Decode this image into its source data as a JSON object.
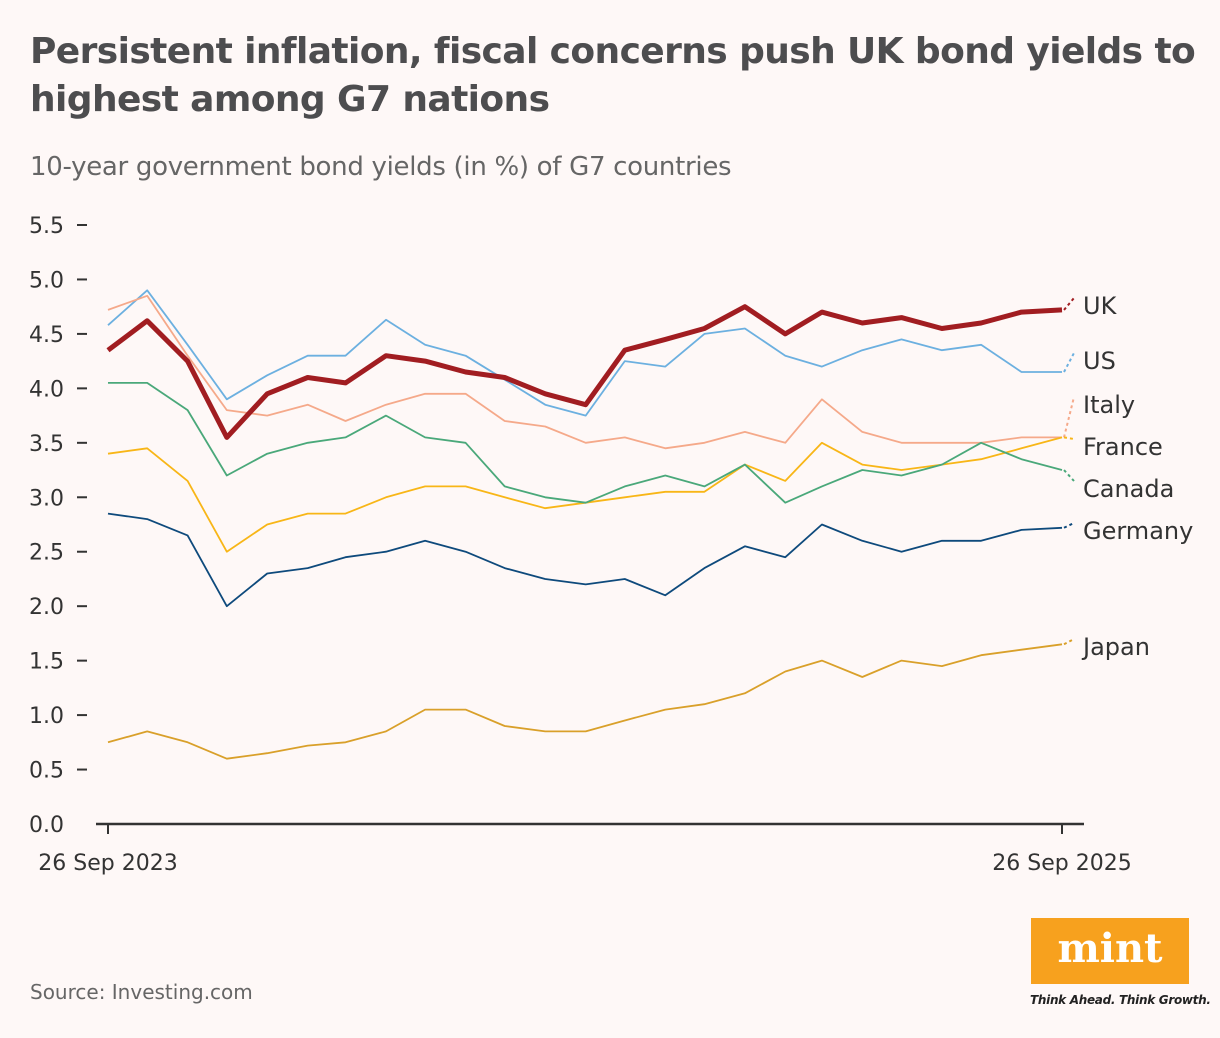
{
  "chart_data": {
    "type": "line",
    "title": "Persistent inflation, fiscal concerns push UK bond yields to highest among G7 nations",
    "subtitle": "10-year government bond yields (in %) of G7 countries",
    "xlabel": "",
    "ylabel": "",
    "ylim": [
      0,
      5.5
    ],
    "yticks": [
      "0.0",
      "0.5",
      "1.0",
      "1.5",
      "2.0",
      "2.5",
      "3.0",
      "3.5",
      "4.0",
      "4.5",
      "5.0",
      "5.5"
    ],
    "xtick_labels": [
      "26 Sep 2023",
      "26 Sep 2025"
    ],
    "grid": false,
    "legend": "direct labels at line ends (right)",
    "x": [
      "2023-09-26",
      "2023-10-26",
      "2023-11-26",
      "2023-12-26",
      "2024-01-26",
      "2024-02-26",
      "2024-03-26",
      "2024-04-26",
      "2024-05-26",
      "2024-06-26",
      "2024-07-26",
      "2024-08-26",
      "2024-09-26",
      "2024-10-26",
      "2024-11-26",
      "2024-12-26",
      "2025-01-26",
      "2025-02-26",
      "2025-03-26",
      "2025-04-26",
      "2025-05-26",
      "2025-06-26",
      "2025-07-26",
      "2025-08-26",
      "2025-09-26"
    ],
    "series": [
      {
        "name": "UK",
        "color": "#a11d21",
        "values": [
          4.35,
          4.62,
          4.25,
          3.55,
          3.95,
          4.1,
          4.05,
          4.3,
          4.25,
          4.15,
          4.1,
          3.95,
          3.85,
          4.35,
          4.45,
          4.55,
          4.75,
          4.5,
          4.7,
          4.6,
          4.65,
          4.55,
          4.6,
          4.7,
          4.72
        ]
      },
      {
        "name": "US",
        "color": "#6cb0e0",
        "values": [
          4.58,
          4.9,
          4.4,
          3.9,
          4.12,
          4.3,
          4.3,
          4.63,
          4.4,
          4.3,
          4.08,
          3.85,
          3.75,
          4.25,
          4.2,
          4.5,
          4.55,
          4.3,
          4.2,
          4.35,
          4.45,
          4.35,
          4.4,
          4.15,
          4.15
        ]
      },
      {
        "name": "Italy",
        "color": "#f5a98a",
        "values": [
          4.72,
          4.85,
          4.3,
          3.8,
          3.75,
          3.85,
          3.7,
          3.85,
          3.95,
          3.95,
          3.7,
          3.65,
          3.5,
          3.55,
          3.45,
          3.5,
          3.6,
          3.5,
          3.9,
          3.6,
          3.5,
          3.5,
          3.5,
          3.55,
          3.55
        ]
      },
      {
        "name": "France",
        "color": "#f8b617",
        "values": [
          3.4,
          3.45,
          3.15,
          2.5,
          2.75,
          2.85,
          2.85,
          3.0,
          3.1,
          3.1,
          3.0,
          2.9,
          2.95,
          3.0,
          3.05,
          3.05,
          3.3,
          3.15,
          3.5,
          3.3,
          3.25,
          3.3,
          3.35,
          3.45,
          3.55
        ]
      },
      {
        "name": "Canada",
        "color": "#4aa87a",
        "values": [
          4.05,
          4.05,
          3.8,
          3.2,
          3.4,
          3.5,
          3.55,
          3.75,
          3.55,
          3.5,
          3.1,
          3.0,
          2.95,
          3.1,
          3.2,
          3.1,
          3.3,
          2.95,
          3.1,
          3.25,
          3.2,
          3.3,
          3.5,
          3.35,
          3.25
        ]
      },
      {
        "name": "Germany",
        "color": "#0e4a7c",
        "values": [
          2.85,
          2.8,
          2.65,
          2.0,
          2.3,
          2.35,
          2.45,
          2.5,
          2.6,
          2.5,
          2.35,
          2.25,
          2.2,
          2.25,
          2.1,
          2.35,
          2.55,
          2.45,
          2.75,
          2.6,
          2.5,
          2.6,
          2.6,
          2.7,
          2.72
        ]
      },
      {
        "name": "Japan",
        "color": "#d9a02a",
        "values": [
          0.75,
          0.85,
          0.75,
          0.6,
          0.65,
          0.72,
          0.75,
          0.85,
          1.05,
          1.05,
          0.9,
          0.85,
          0.85,
          0.95,
          1.05,
          1.1,
          1.2,
          1.4,
          1.5,
          1.35,
          1.5,
          1.45,
          1.55,
          1.6,
          1.65
        ]
      }
    ]
  },
  "source": "Source: Investing.com",
  "logo": {
    "text": "mint",
    "tagline": "Think Ahead. Think Growth.",
    "color": "#f7a11e"
  }
}
